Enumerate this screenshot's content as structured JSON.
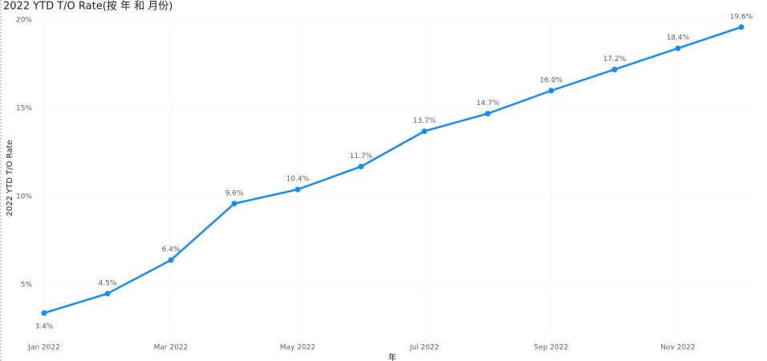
{
  "chart_data": {
    "type": "line",
    "title": "2022 YTD T/O Rate(按 年 和 月份)",
    "y_label": "2022 YTD T/O Rate",
    "x_label": "年",
    "categories": [
      "Jan 2022",
      null,
      "Mar 2022",
      null,
      "May 2022",
      null,
      "Jul 2022",
      null,
      "Sep 2022",
      null,
      "Nov 2022",
      null
    ],
    "values": [
      3.4,
      4.5,
      6.4,
      9.6,
      10.4,
      11.7,
      13.7,
      14.7,
      16.0,
      17.2,
      18.4,
      19.6
    ],
    "value_labels": [
      "3.4%",
      "4.5%",
      "6.4%",
      "9.6%",
      "10.4%",
      "11.7%",
      "13.7%",
      "14.7%",
      "16.0%",
      "17.2%",
      "18.4%",
      "19.6%"
    ],
    "color": "#118DFF",
    "ylim": [
      2.5,
      20
    ],
    "yticks": [
      {
        "value": 5,
        "label": "5%"
      },
      {
        "value": 10,
        "label": "10%"
      },
      {
        "value": 15,
        "label": "15%"
      },
      {
        "value": 20,
        "label": "20%"
      }
    ],
    "grid": true
  }
}
